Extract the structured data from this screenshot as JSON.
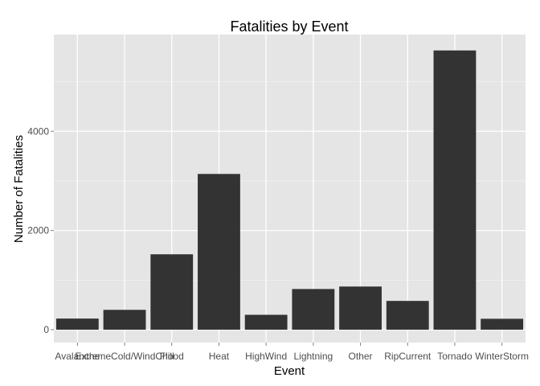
{
  "chart_data": {
    "type": "bar",
    "title": "Fatalities by Event",
    "xlabel": "Event",
    "ylabel": "Number of Fatalities",
    "categories": [
      "Avalanche",
      "ExtremeCold/WindChill",
      "Flood",
      "Heat",
      "HighWind",
      "Lightning",
      "Other",
      "RipCurrent",
      "Tornado",
      "WinterStorm"
    ],
    "values": [
      224,
      400,
      1520,
      3140,
      300,
      820,
      870,
      580,
      5630,
      220
    ],
    "yticks": [
      0,
      2000,
      4000
    ],
    "ytick_labels": [
      "0",
      "2000",
      "4000"
    ],
    "ylim": [
      -260,
      5950
    ],
    "grid": true,
    "legend": "none",
    "colors": {
      "bar": "#333333",
      "panel": "#e5e5e5",
      "grid_major": "#ffffff",
      "grid_minor": "#f2f2f2"
    }
  }
}
